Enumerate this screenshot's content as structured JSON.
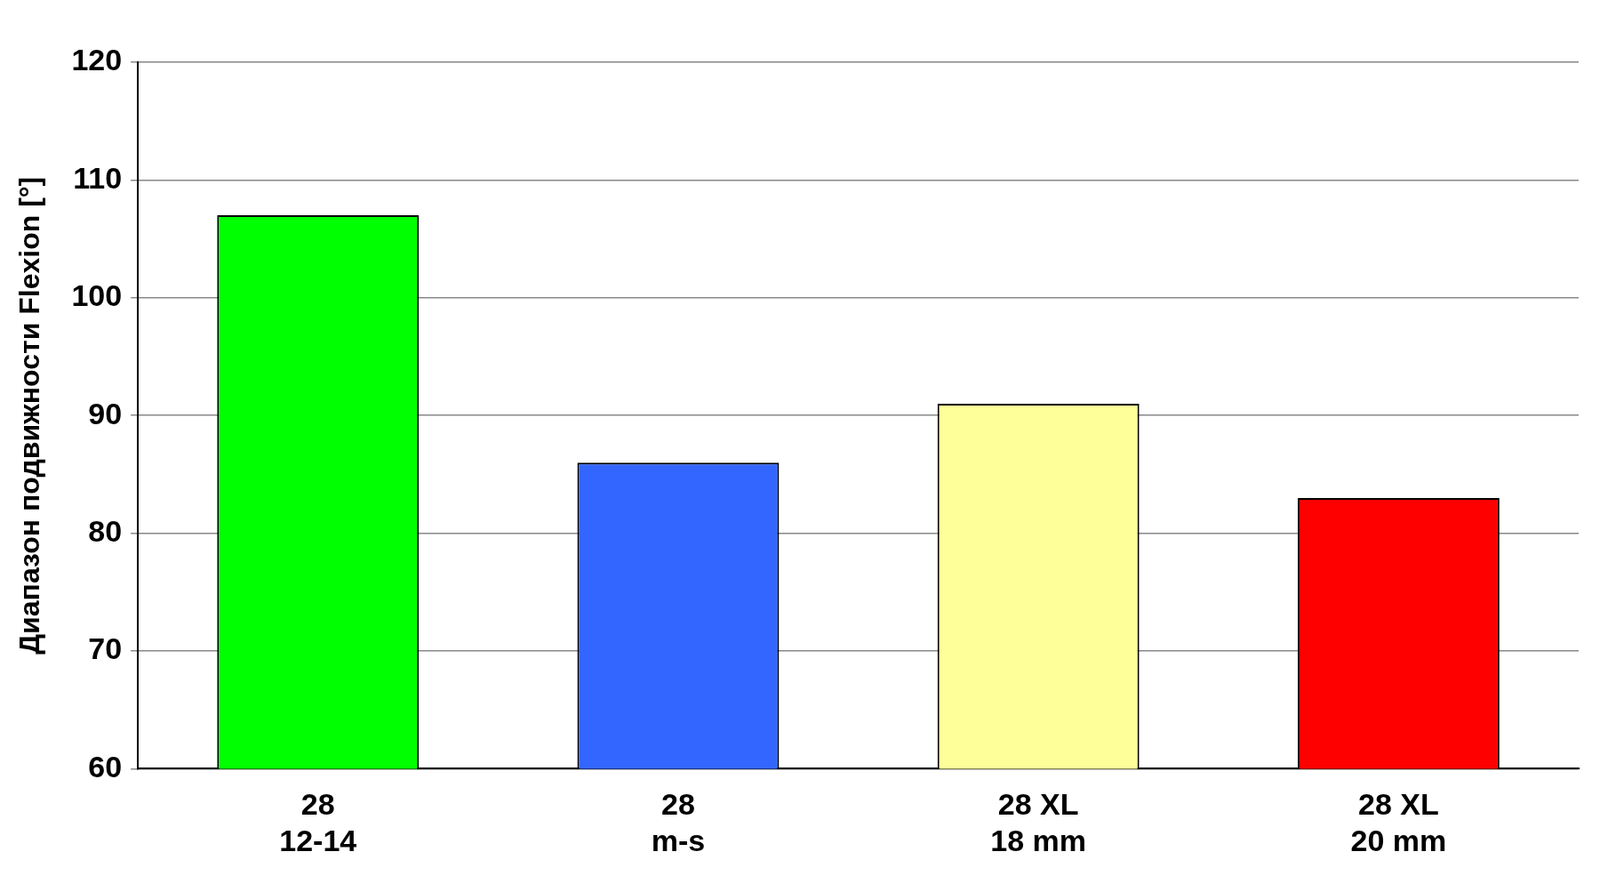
{
  "chart_data": {
    "type": "bar",
    "y_label": "Диапазон подвижности Flexion [°]",
    "categories": [
      [
        "28",
        "12-14"
      ],
      [
        "28",
        "m-s"
      ],
      [
        "28 XL",
        "18 mm"
      ],
      [
        "28 XL",
        "20 mm"
      ]
    ],
    "values": [
      107,
      86,
      91,
      83
    ],
    "colors": [
      "#00ff00",
      "#3366ff",
      "#ffff99",
      "#ff0000"
    ],
    "ylim": [
      60,
      120
    ],
    "yticks": [
      60,
      70,
      80,
      90,
      100,
      110,
      120
    ],
    "grid": true
  }
}
